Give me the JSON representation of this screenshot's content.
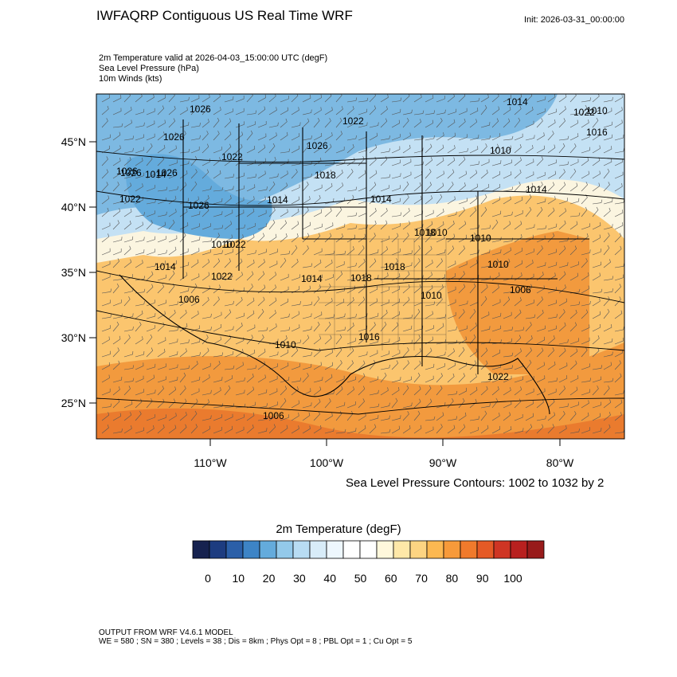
{
  "header": {
    "title": "IWFAQRP Contiguous US Real Time WRF",
    "init": "Init: 2026-03-31_00:00:00"
  },
  "fields": [
    "2m Temperature valid at 2026-04-03_15:00:00 UTC   (degF)",
    "Sea Level Pressure   (hPa)",
    "10m Winds   (kts)"
  ],
  "axes": {
    "lat_labels": [
      "45°N",
      "40°N",
      "35°N",
      "30°N",
      "25°N"
    ],
    "lon_labels": [
      "110°W",
      "100°W",
      "90°W",
      "80°W"
    ]
  },
  "pressure_labels": [
    "1026",
    "1026",
    "1022",
    "1026",
    "1026",
    "1022",
    "1026",
    "1022",
    "1014",
    "1022",
    "1026",
    "1018",
    "1014",
    "1010",
    "1010",
    "1014",
    "1010",
    "1016",
    "1010",
    "1014",
    "1010",
    "1006",
    "1018",
    "1018",
    "1014",
    "1010",
    "1022",
    "1010",
    "1016",
    "1006",
    "1026",
    "1022",
    "1006",
    "1014",
    "1010",
    "1014",
    "1022",
    "1018"
  ],
  "contour_note": "Sea Level Pressure Contours: 1002 to 1032 by 2",
  "legend": {
    "title": "2m Temperature  (degF)",
    "ticks": [
      "0",
      "10",
      "20",
      "30",
      "40",
      "50",
      "60",
      "70",
      "80",
      "90",
      "100"
    ],
    "colors": [
      "#16224f",
      "#1d3c80",
      "#2b5fa8",
      "#3d84c6",
      "#64abdc",
      "#93c9ea",
      "#b8dcf3",
      "#d8ecf8",
      "#eef7fd",
      "#ffffff",
      "#ffffff",
      "#fff8dc",
      "#fee8a8",
      "#fdd482",
      "#fcb851",
      "#f79a3a",
      "#f07a2c",
      "#e55a26",
      "#cf3524",
      "#b8201f",
      "#981b1b"
    ]
  },
  "footer": {
    "line1": "OUTPUT FROM WRF V4.6.1 MODEL",
    "line2": "WE = 580 ; SN = 380 ; Levels = 38 ; Dis = 8km ; Phys Opt = 8 ; PBL Opt = 1 ; Cu Opt = 5"
  },
  "colors": {
    "cold": "#7db9e2",
    "cool": "#c4e1f4",
    "mild": "#fbf5e0",
    "warm": "#fbc56e",
    "hot": "#f29a3e",
    "veryhot": "#ea7b2e"
  }
}
